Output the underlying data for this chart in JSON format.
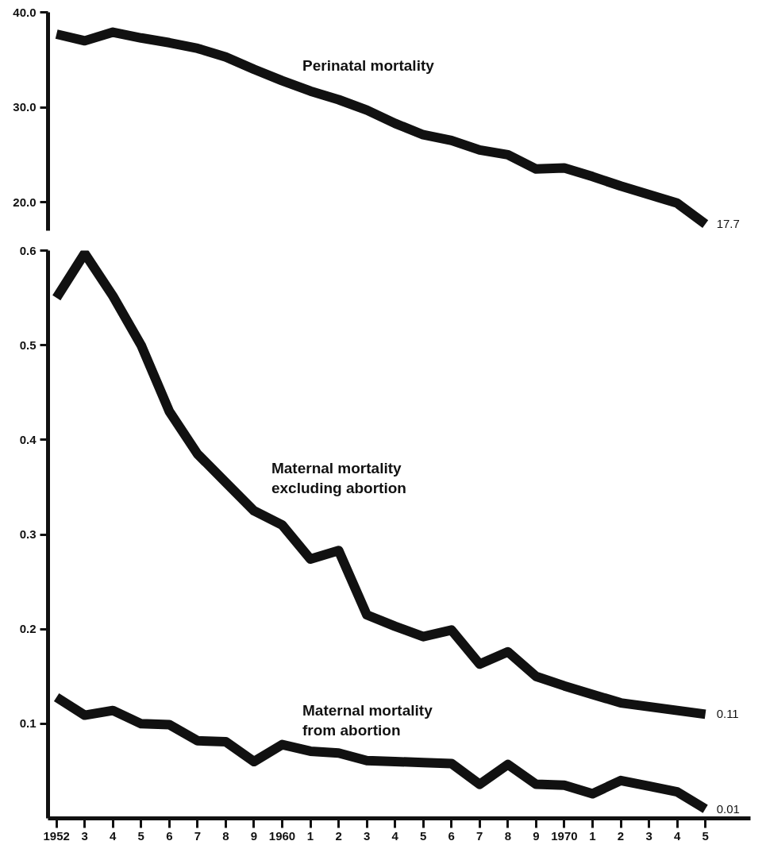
{
  "chart_data": [
    {
      "type": "line",
      "categories": [
        "1952",
        "3",
        "4",
        "5",
        "6",
        "7",
        "8",
        "9",
        "1960",
        "1",
        "2",
        "3",
        "4",
        "5",
        "6",
        "7",
        "8",
        "9",
        "1970",
        "1",
        "2",
        "3",
        "4",
        "5"
      ],
      "series": [
        {
          "name": "Perinatal mortality",
          "color": "#111111",
          "values": [
            37.7,
            37.0,
            37.9,
            37.3,
            36.8,
            36.2,
            35.3,
            34.0,
            32.8,
            31.7,
            30.8,
            29.7,
            28.3,
            27.1,
            26.5,
            25.5,
            25.0,
            23.5,
            23.6,
            22.7,
            21.7,
            20.8,
            19.9,
            17.7
          ],
          "value_labels": [
            null,
            null,
            null,
            null,
            null,
            null,
            null,
            null,
            null,
            null,
            null,
            null,
            null,
            null,
            null,
            null,
            null,
            null,
            null,
            null,
            null,
            null,
            null,
            "17.7"
          ]
        }
      ],
      "ylim": [
        17.0,
        40.0
      ],
      "yticks": [
        {
          "value": 20,
          "label": "20.0"
        },
        {
          "value": 30,
          "label": "30.0"
        },
        {
          "value": 40,
          "label": "40.0"
        }
      ],
      "tick_labels": "y",
      "grid": false,
      "marker": "none",
      "line_style": "solid"
    },
    {
      "type": "line",
      "categories": [
        "1952",
        "3",
        "4",
        "5",
        "6",
        "7",
        "8",
        "9",
        "1960",
        "1",
        "2",
        "3",
        "4",
        "5",
        "6",
        "7",
        "8",
        "9",
        "1970",
        "1",
        "2",
        "3",
        "4",
        "5"
      ],
      "series": [
        {
          "name": "Maternal mortality excluding abortion",
          "color": "#111111",
          "values": [
            0.55,
            0.597,
            0.552,
            0.5,
            0.43,
            0.385,
            0.355,
            0.325,
            0.31,
            0.274,
            0.283,
            0.215,
            0.203,
            0.192,
            0.199,
            0.163,
            0.176,
            0.15,
            0.14,
            0.131,
            0.122,
            0.118,
            0.114,
            0.11
          ],
          "value_labels": [
            null,
            null,
            null,
            null,
            null,
            null,
            null,
            null,
            null,
            null,
            null,
            null,
            null,
            null,
            null,
            null,
            null,
            null,
            null,
            null,
            null,
            null,
            null,
            "0.11"
          ]
        },
        {
          "name": "Maternal mortality from abortion",
          "color": "#111111",
          "values": [
            0.128,
            0.109,
            0.114,
            0.1,
            0.099,
            0.082,
            0.081,
            0.06,
            0.078,
            0.071,
            0.069,
            0.061,
            0.06,
            0.059,
            0.058,
            0.036,
            0.057,
            0.036,
            0.035,
            0.026,
            0.04,
            0.034,
            0.028,
            0.01
          ],
          "value_labels": [
            null,
            null,
            null,
            null,
            null,
            null,
            null,
            null,
            null,
            null,
            null,
            null,
            null,
            null,
            null,
            null,
            null,
            null,
            null,
            null,
            null,
            null,
            null,
            "0.01"
          ]
        }
      ],
      "ylim": [
        0,
        0.6
      ],
      "yticks": [
        {
          "value": 0.1,
          "label": "0.1"
        },
        {
          "value": 0.2,
          "label": "0.2"
        },
        {
          "value": 0.3,
          "label": "0.3"
        },
        {
          "value": 0.4,
          "label": "0.4"
        },
        {
          "value": 0.5,
          "label": "0.5"
        },
        {
          "value": 0.6,
          "label": "0.6"
        }
      ],
      "grid": false,
      "marker": "none",
      "line_style": "solid"
    }
  ]
}
